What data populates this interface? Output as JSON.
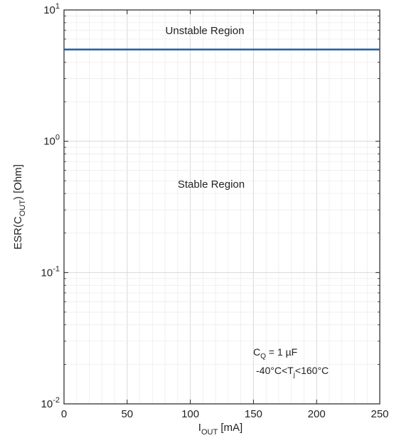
{
  "chart_data": {
    "type": "line",
    "title": "",
    "xlabel": {
      "base": "I",
      "sub": "OUT",
      "rest": " [mA]"
    },
    "ylabel": {
      "pre": "ESR(C",
      "sub": "OUT",
      "post": ") [Ohm]"
    },
    "xlim": [
      0,
      250
    ],
    "ylim": [
      0.01,
      10
    ],
    "yscale": "log",
    "grid": true,
    "x_ticks": [
      0,
      50,
      100,
      150,
      200,
      250
    ],
    "y_ticks": [
      {
        "base": "10",
        "exp": "1",
        "value": 10
      },
      {
        "base": "10",
        "exp": "0",
        "value": 1
      },
      {
        "base": "10",
        "exp": "-1",
        "value": 0.1
      },
      {
        "base": "10",
        "exp": "-2",
        "value": 0.01
      }
    ],
    "series": [
      {
        "color": "#1f5fa0",
        "x": [
          0,
          250
        ],
        "y": [
          5,
          5
        ]
      }
    ],
    "annotations": {
      "unstable": "Unstable Region",
      "stable": "Stable Region",
      "cq": {
        "pre": "C",
        "sub": "Q",
        "post": " = 1 µF"
      },
      "tj": {
        "pre": "-40°C<T",
        "sub": "j",
        "post": "<160°C"
      }
    }
  }
}
